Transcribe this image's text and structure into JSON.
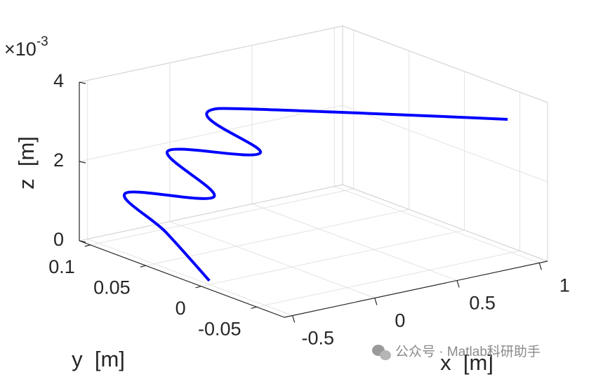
{
  "chart_data": {
    "type": "line3d",
    "x": [
      -0.46,
      -0.37,
      -0.29,
      -0.19,
      -0.1,
      0.03,
      0.12,
      1.05
    ],
    "y": [
      0.006,
      0.059,
      0.107,
      0.042,
      0.097,
      0.033,
      0.085,
      -0.039
    ],
    "z": [
      0,
      0.6,
      1.0,
      1.5,
      2.0,
      2.5,
      3.0,
      3.2
    ],
    "color": "#0000ff",
    "xlim": [
      -0.55,
      1.05
    ],
    "ylim": [
      -0.075,
      0.11
    ],
    "zlim": [
      0,
      4
    ],
    "xticks": [
      -0.5,
      0,
      0.5,
      1
    ],
    "yticks": [
      -0.05,
      0,
      0.05,
      0.1
    ],
    "zticks": [
      0,
      2,
      4
    ],
    "z_multiplier": {
      "base": "×10",
      "exponent": "-3"
    },
    "xlabel": "x  [m]",
    "ylabel": "y  [m]",
    "zlabel": "z  [m]",
    "grid": true,
    "watermark": "公众号 · Matlab科研助手"
  }
}
